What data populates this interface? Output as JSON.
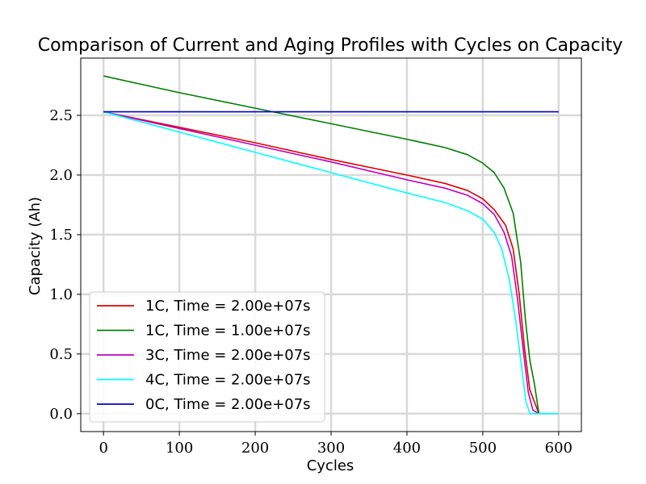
{
  "chart_data": {
    "type": "line",
    "title": "Comparison of Current and Aging Profiles with Cycles on Capacity",
    "xlabel": "Cycles",
    "ylabel": "Capacity (Ah)",
    "xlim": [
      -30,
      630
    ],
    "ylim": [
      -0.15,
      2.98
    ],
    "xticks": [
      0,
      100,
      200,
      300,
      400,
      500,
      600
    ],
    "yticks": [
      0.0,
      0.5,
      1.0,
      1.5,
      2.0,
      2.5
    ],
    "xtick_labels": [
      "0",
      "100",
      "200",
      "300",
      "400",
      "500",
      "600"
    ],
    "ytick_labels": [
      "0.0",
      "0.5",
      "1.0",
      "1.5",
      "2.0",
      "2.5"
    ],
    "grid": true,
    "legend_position": "lower-left",
    "series": [
      {
        "name": "1C, Time = 2.00e+07s",
        "color": "#e00000",
        "x": [
          0,
          100,
          200,
          300,
          400,
          450,
          480,
          500,
          515,
          530,
          540,
          548,
          555,
          562,
          568,
          574
        ],
        "y": [
          2.53,
          2.4,
          2.27,
          2.13,
          2.0,
          1.93,
          1.87,
          1.8,
          1.71,
          1.58,
          1.38,
          1.0,
          0.55,
          0.2,
          0.1,
          0.0
        ]
      },
      {
        "name": "1C, Time = 1.00e+07s",
        "color": "#008000",
        "x": [
          0,
          100,
          200,
          300,
          400,
          450,
          480,
          500,
          515,
          528,
          540,
          550,
          556,
          562,
          568,
          574
        ],
        "y": [
          2.83,
          2.69,
          2.56,
          2.43,
          2.3,
          2.23,
          2.17,
          2.1,
          2.02,
          1.89,
          1.68,
          1.27,
          0.8,
          0.45,
          0.25,
          0.0
        ]
      },
      {
        "name": "3C, Time = 2.00e+07s",
        "color": "#c000c0",
        "x": [
          0,
          100,
          200,
          300,
          400,
          450,
          480,
          500,
          515,
          528,
          538,
          546,
          553,
          560,
          566,
          574
        ],
        "y": [
          2.53,
          2.39,
          2.25,
          2.11,
          1.96,
          1.89,
          1.83,
          1.76,
          1.67,
          1.52,
          1.32,
          0.95,
          0.55,
          0.18,
          0.03,
          0.0
        ]
      },
      {
        "name": "4C, Time = 2.00e+07s",
        "color": "#00ffff",
        "x": [
          0,
          100,
          200,
          300,
          400,
          450,
          480,
          500,
          515,
          525,
          535,
          543,
          550,
          557,
          562,
          600
        ],
        "y": [
          2.53,
          2.36,
          2.19,
          2.02,
          1.85,
          1.77,
          1.7,
          1.63,
          1.52,
          1.38,
          1.12,
          0.8,
          0.45,
          0.1,
          0.0,
          0.0
        ]
      },
      {
        "name": "0C, Time = 2.00e+07s",
        "color": "#0000cc",
        "x": [
          0,
          600
        ],
        "y": [
          2.53,
          2.53
        ]
      }
    ]
  }
}
